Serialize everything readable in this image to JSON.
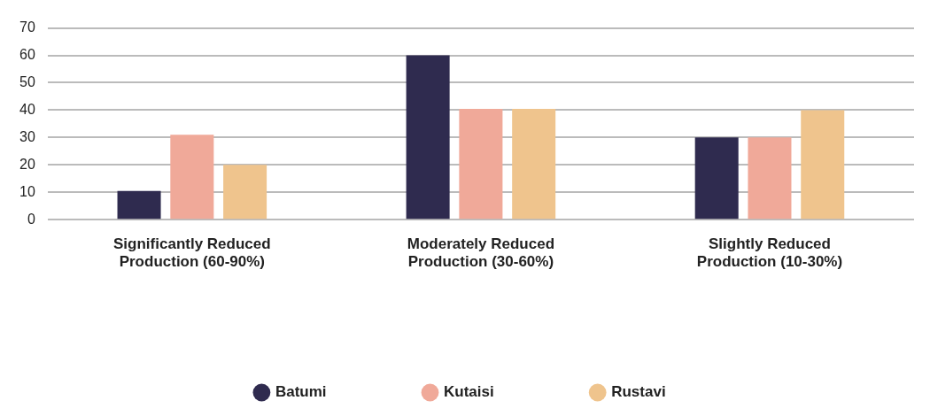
{
  "chart_data": {
    "type": "bar",
    "categories": [
      "Significantly Reduced Production (60-90%)",
      "Moderately Reduced Production (30-60%)",
      "Slightly Reduced Production (10-30%)"
    ],
    "series": [
      {
        "name": "Batumi",
        "color": "#2f2b4f",
        "values": [
          10.5,
          60,
          30
        ]
      },
      {
        "name": "Kutaisi",
        "color": "#f0a999",
        "values": [
          31,
          40.5,
          30
        ]
      },
      {
        "name": "Rustavi",
        "color": "#efc48d",
        "values": [
          20,
          40.5,
          40
        ]
      }
    ],
    "ylim": [
      0,
      70
    ],
    "yticks": [
      0,
      10,
      20,
      30,
      40,
      50,
      60,
      70
    ],
    "grid": "y",
    "legend": "bottom"
  }
}
